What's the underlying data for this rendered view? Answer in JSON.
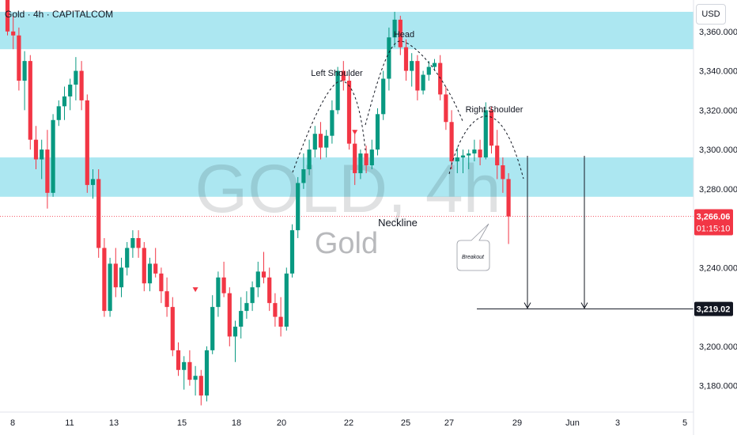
{
  "header": {
    "symbol_title": "Gold · 4h · CAPITALCOM",
    "currency": "USD"
  },
  "watermark": {
    "line1": "GOLD, 4h",
    "line2": "Gold"
  },
  "colors": {
    "up": "#089981",
    "down": "#f23645",
    "zone": "#a8e6f0",
    "text": "#131722",
    "axis_text": "#131722"
  },
  "chart_data": {
    "type": "candlestick",
    "y_axis": {
      "min": 3167,
      "max": 3376,
      "ticks": [
        3180,
        3200,
        3240,
        3280,
        3300,
        3320,
        3340,
        3360
      ],
      "position": "right"
    },
    "x_axis": {
      "labels": [
        "8",
        "11",
        "13",
        "15",
        "18",
        "20",
        "22",
        "25",
        "27",
        "29",
        "Jun",
        "3",
        "5"
      ]
    },
    "zones": [
      {
        "name": "resistance",
        "from": 3351,
        "to": 3370
      },
      {
        "name": "support",
        "from": 3276,
        "to": 3296
      }
    ],
    "current_price": {
      "value": 3266.06,
      "label": "3,266.06",
      "countdown": "01:15:10"
    },
    "target_price": {
      "value": 3219.02,
      "label": "3,219.02"
    },
    "annotations": [
      {
        "text": "Head",
        "price": 3374
      },
      {
        "text": "Left Shoulder",
        "price": 3350
      },
      {
        "text": "Right Shoulder",
        "price": 3325
      },
      {
        "text": "Neckline",
        "price": 3268
      },
      {
        "text": "Breakout",
        "price": 3247
      }
    ],
    "candles": [
      [
        3385,
        3386,
        3358,
        3360
      ],
      [
        3360,
        3368,
        3351,
        3358
      ],
      [
        3358,
        3362,
        3330,
        3335
      ],
      [
        3335,
        3350,
        3320,
        3345
      ],
      [
        3345,
        3348,
        3300,
        3305
      ],
      [
        3305,
        3312,
        3290,
        3295
      ],
      [
        3295,
        3305,
        3285,
        3300
      ],
      [
        3300,
        3310,
        3270,
        3278
      ],
      [
        3278,
        3318,
        3276,
        3315
      ],
      [
        3315,
        3325,
        3312,
        3322
      ],
      [
        3322,
        3332,
        3315,
        3327
      ],
      [
        3327,
        3336,
        3320,
        3333
      ],
      [
        3333,
        3347,
        3325,
        3340
      ],
      [
        3340,
        3345,
        3320,
        3325
      ],
      [
        3325,
        3328,
        3278,
        3282
      ],
      [
        3282,
        3290,
        3275,
        3285
      ],
      [
        3285,
        3290,
        3245,
        3250
      ],
      [
        3250,
        3255,
        3215,
        3218
      ],
      [
        3218,
        3245,
        3215,
        3242
      ],
      [
        3242,
        3250,
        3225,
        3230
      ],
      [
        3230,
        3245,
        3225,
        3240
      ],
      [
        3240,
        3253,
        3236,
        3250
      ],
      [
        3250,
        3259,
        3245,
        3255
      ],
      [
        3255,
        3259,
        3245,
        3250
      ],
      [
        3250,
        3253,
        3228,
        3232
      ],
      [
        3232,
        3245,
        3228,
        3242
      ],
      [
        3242,
        3250,
        3235,
        3237
      ],
      [
        3237,
        3240,
        3222,
        3228
      ],
      [
        3228,
        3235,
        3215,
        3220
      ],
      [
        3220,
        3225,
        3195,
        3198
      ],
      [
        3198,
        3202,
        3185,
        3188
      ],
      [
        3188,
        3195,
        3178,
        3192
      ],
      [
        3192,
        3198,
        3180,
        3183
      ],
      [
        3183,
        3190,
        3175,
        3185
      ],
      [
        3185,
        3188,
        3170,
        3175
      ],
      [
        3175,
        3200,
        3172,
        3198
      ],
      [
        3198,
        3226,
        3196,
        3220
      ],
      [
        3220,
        3238,
        3215,
        3235
      ],
      [
        3235,
        3243,
        3225,
        3227
      ],
      [
        3227,
        3230,
        3200,
        3205
      ],
      [
        3205,
        3213,
        3192,
        3210
      ],
      [
        3210,
        3225,
        3204,
        3218
      ],
      [
        3218,
        3228,
        3214,
        3222
      ],
      [
        3222,
        3233,
        3218,
        3230
      ],
      [
        3230,
        3243,
        3225,
        3238
      ],
      [
        3238,
        3248,
        3232,
        3235
      ],
      [
        3235,
        3240,
        3218,
        3222
      ],
      [
        3222,
        3227,
        3210,
        3215
      ],
      [
        3215,
        3225,
        3205,
        3210
      ],
      [
        3210,
        3240,
        3208,
        3237
      ],
      [
        3237,
        3262,
        3235,
        3259
      ],
      [
        3259,
        3286,
        3255,
        3283
      ],
      [
        3283,
        3298,
        3280,
        3290
      ],
      [
        3290,
        3305,
        3287,
        3300
      ],
      [
        3300,
        3312,
        3296,
        3308
      ],
      [
        3308,
        3314,
        3295,
        3301
      ],
      [
        3301,
        3310,
        3296,
        3307
      ],
      [
        3307,
        3325,
        3303,
        3320
      ],
      [
        3320,
        3342,
        3318,
        3340
      ],
      [
        3340,
        3345,
        3330,
        3335
      ],
      [
        3335,
        3338,
        3300,
        3303
      ],
      [
        3303,
        3310,
        3282,
        3288
      ],
      [
        3288,
        3300,
        3285,
        3298
      ],
      [
        3298,
        3302,
        3288,
        3292
      ],
      [
        3292,
        3305,
        3290,
        3300
      ],
      [
        3300,
        3321,
        3297,
        3318
      ],
      [
        3318,
        3340,
        3315,
        3336
      ],
      [
        3336,
        3362,
        3330,
        3357
      ],
      [
        3357,
        3370,
        3352,
        3366
      ],
      [
        3366,
        3368,
        3348,
        3352
      ],
      [
        3352,
        3356,
        3335,
        3340
      ],
      [
        3340,
        3349,
        3332,
        3345
      ],
      [
        3345,
        3348,
        3325,
        3330
      ],
      [
        3330,
        3340,
        3328,
        3338
      ],
      [
        3338,
        3345,
        3335,
        3342
      ],
      [
        3342,
        3346,
        3340,
        3344
      ],
      [
        3344,
        3348,
        3325,
        3328
      ],
      [
        3328,
        3332,
        3310,
        3314
      ],
      [
        3314,
        3320,
        3290,
        3294
      ],
      [
        3294,
        3301,
        3288,
        3296
      ],
      [
        3296,
        3300,
        3288,
        3297
      ],
      [
        3297,
        3300,
        3290,
        3298
      ],
      [
        3298,
        3305,
        3294,
        3300
      ],
      [
        3300,
        3305,
        3292,
        3296
      ],
      [
        3296,
        3324,
        3295,
        3320
      ],
      [
        3320,
        3322,
        3298,
        3302
      ],
      [
        3302,
        3310,
        3285,
        3292
      ],
      [
        3292,
        3296,
        3278,
        3285
      ],
      [
        3285,
        3288,
        3252,
        3266
      ]
    ],
    "markers": [
      {
        "type": "arrow-down",
        "candle": 33,
        "price": 3230
      },
      {
        "type": "arrow-down",
        "candle": 61,
        "price": 3310
      }
    ]
  }
}
